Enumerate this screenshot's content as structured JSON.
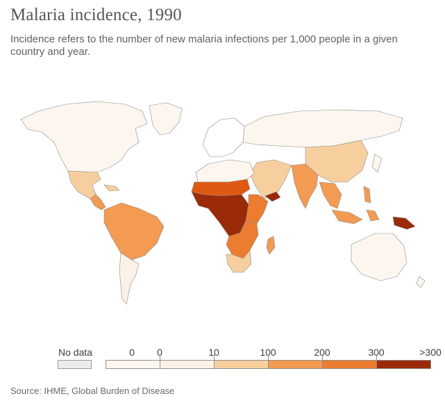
{
  "header": {
    "title": "Malaria incidence, 1990",
    "subtitle": "Incidence refers to the number of new malaria infections per 1,000 people in a given country and year."
  },
  "legend": {
    "no_data_label": "No data",
    "no_data_color": "#ececec",
    "tick_labels": [
      "0",
      "0",
      "10",
      "100",
      "200",
      "300",
      ">300"
    ],
    "bins": [
      {
        "color": "#fdf6ef",
        "lower": "0",
        "upper": "0"
      },
      {
        "color": "#fbf1e6",
        "lower": "0",
        "upper": "10"
      },
      {
        "color": "#f7cf9f",
        "lower": "10",
        "upper": "100"
      },
      {
        "color": "#f39b53",
        "lower": "100",
        "upper": "200"
      },
      {
        "color": "#ec7c30",
        "lower": "200",
        "upper": "300"
      },
      {
        "color": "#de5a13",
        "lower": "300",
        "upper": ">300"
      },
      {
        "color": "#9b2a08",
        "lower": ">300",
        "upper": ""
      }
    ]
  },
  "chart_data": {
    "type": "choropleth",
    "year": 1990,
    "metric": "Malaria incidence per 1,000 people",
    "regions": [
      {
        "region": "North America",
        "bin": "0-10"
      },
      {
        "region": "Europe",
        "bin": "No data"
      },
      {
        "region": "Russia and Central Asia",
        "bin": "0-10"
      },
      {
        "region": "Mexico",
        "bin": "10-100"
      },
      {
        "region": "Central America",
        "bin": "100-200"
      },
      {
        "region": "Northern South America",
        "bin": "100-200"
      },
      {
        "region": "Southern South America",
        "bin": "0-10"
      },
      {
        "region": "North Africa",
        "bin": "0-10"
      },
      {
        "region": "Sahel",
        "bin": "300+"
      },
      {
        "region": "West Africa",
        "bin": ">300"
      },
      {
        "region": "Central Africa",
        "bin": ">300"
      },
      {
        "region": "East Africa",
        "bin": "200-300"
      },
      {
        "region": "Southern Africa",
        "bin": "100-200"
      },
      {
        "region": "South Africa",
        "bin": "10-100"
      },
      {
        "region": "Madagascar",
        "bin": "100-200"
      },
      {
        "region": "Arabian Peninsula",
        "bin": "10-100"
      },
      {
        "region": "Yemen",
        "bin": ">300"
      },
      {
        "region": "India",
        "bin": "100-200"
      },
      {
        "region": "China",
        "bin": "10-100"
      },
      {
        "region": "Southeast Asia",
        "bin": "100-200"
      },
      {
        "region": "Indonesia",
        "bin": "100-200"
      },
      {
        "region": "Papua New Guinea",
        "bin": ">300"
      },
      {
        "region": "Australia",
        "bin": "0-10"
      }
    ]
  },
  "footer": {
    "source": "Source: IHME, Global Burden of Disease"
  }
}
